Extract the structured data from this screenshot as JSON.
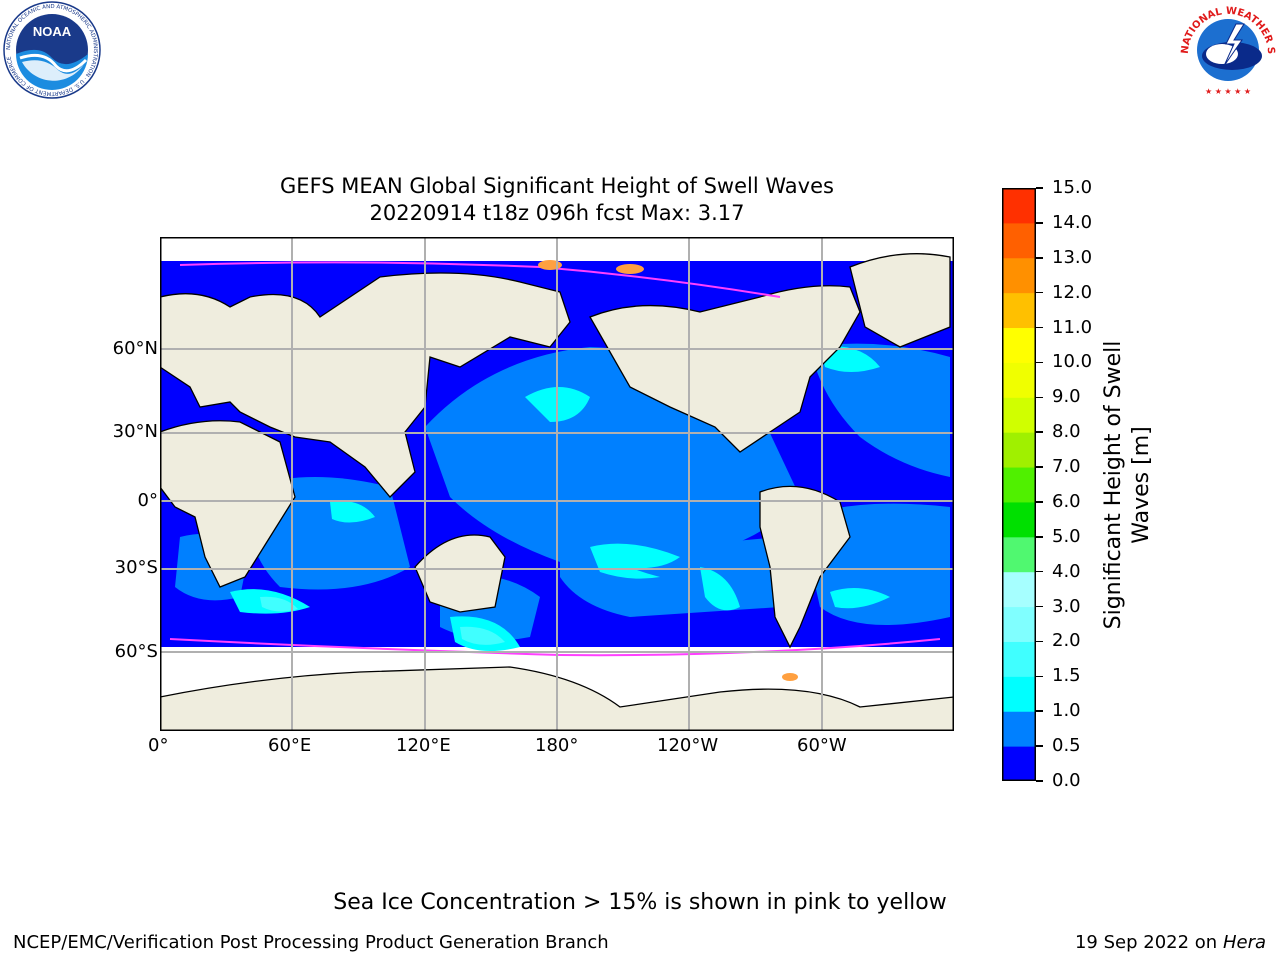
{
  "title_line1": "GEFS MEAN Global Significant Height of Swell Waves",
  "title_line2": "20220914 t18z 096h fcst   Max: 3.17",
  "logos": {
    "noaa_text": "NOAA",
    "noaa_ring_text": "NATIONAL OCEANIC AND ATMOSPHERIC ADMINISTRATION · U.S. DEPARTMENT OF COMMERCE",
    "nws_ring_text": "NATIONAL WEATHER SERVICE"
  },
  "map": {
    "lat_labels": [
      "60°N",
      "30°N",
      "0°",
      "30°S",
      "60°S"
    ],
    "lon_labels": [
      "0°",
      "60°E",
      "120°E",
      "180°",
      "120°W",
      "60°W"
    ],
    "land_color": "#efedde",
    "grid_color": "#b0b0b0"
  },
  "colorbar": {
    "label_line1": "Significant Height of Swell",
    "label_line2": "Waves [m]",
    "ticks": [
      "15.0",
      "14.0",
      "13.0",
      "12.0",
      "11.0",
      "10.0",
      "9.0",
      "8.0",
      "7.0",
      "6.0",
      "5.0",
      "4.0",
      "3.0",
      "2.0",
      "1.5",
      "1.0",
      "0.5",
      "0.0"
    ],
    "colors": [
      "#0000ff",
      "#0080ff",
      "#00ffff",
      "#40ffff",
      "#80ffff",
      "#a6ffff",
      "#50f870",
      "#00e000",
      "#50f000",
      "#a0f000",
      "#d0ff00",
      "#f0ff00",
      "#ffff00",
      "#ffc000",
      "#ff9000",
      "#ff6000",
      "#ff3000",
      "#ff0000"
    ]
  },
  "sea_ice_note": "Sea Ice Concentration > 15% is shown in pink to yellow",
  "footer_left": "NCEP/EMC/Verification Post Processing Product Generation Branch",
  "footer_date": "19 Sep 2022 on",
  "footer_host": "Hera"
}
